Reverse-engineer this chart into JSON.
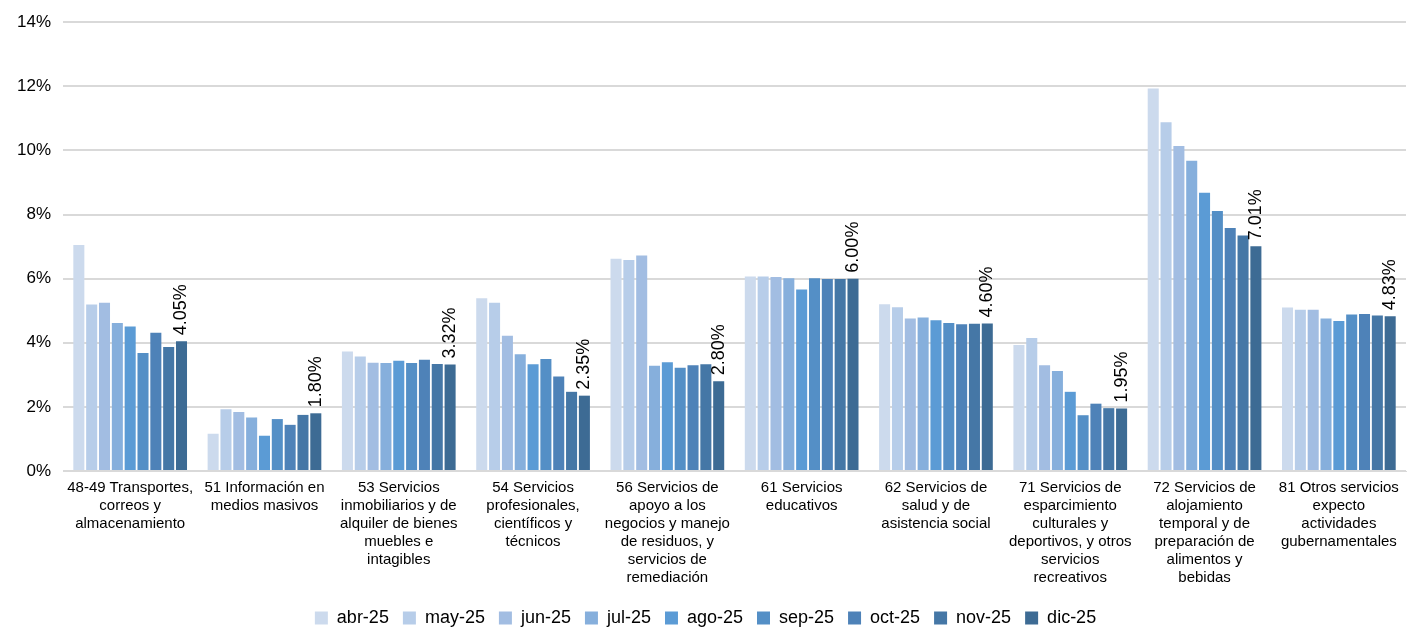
{
  "chart_data": {
    "type": "bar",
    "categories": [
      "48-49 Transportes, correos y almacenamiento",
      "51 Información en medios masivos",
      "53 Servicios inmobiliarios y de alquiler de bienes muebles e intagibles",
      "54 Servicios profesionales, científicos y técnicos",
      "56 Servicios de apoyo a los negocios y manejo de residuos, y servicios de remediación",
      "61 Servicios educativos",
      "62 Servicios de salud y de asistencia social",
      "71 Servicios de esparcimiento culturales y deportivos, y otros servicios recreativos",
      "72 Servicios de alojamiento temporal y de preparación de alimentos y bebidas",
      "81 Otros servicios expecto actividades gubernamentales"
    ],
    "series": [
      {
        "name": "abr-25",
        "color": "#ccdaed",
        "values": [
          7.05,
          1.16,
          3.73,
          5.39,
          6.62,
          6.07,
          5.2,
          3.93,
          11.93,
          5.1
        ]
      },
      {
        "name": "may-25",
        "color": "#b7cde9",
        "values": [
          5.19,
          1.93,
          3.57,
          5.25,
          6.58,
          6.07,
          5.11,
          4.15,
          10.88,
          5.03
        ]
      },
      {
        "name": "jun-25",
        "color": "#a2bde2",
        "values": [
          5.25,
          1.84,
          3.38,
          4.22,
          6.72,
          6.05,
          4.76,
          3.3,
          10.14,
          5.03
        ]
      },
      {
        "name": "jul-25",
        "color": "#86afdc",
        "values": [
          4.62,
          1.67,
          3.37,
          3.64,
          3.28,
          6.01,
          4.79,
          3.12,
          9.68,
          4.76
        ]
      },
      {
        "name": "ago-25",
        "color": "#5b9bd5",
        "values": [
          4.51,
          1.1,
          3.44,
          3.33,
          3.39,
          5.66,
          4.7,
          2.47,
          8.68,
          4.68
        ]
      },
      {
        "name": "sep-25",
        "color": "#548fc6",
        "values": [
          3.68,
          1.62,
          3.37,
          3.49,
          3.22,
          6.01,
          4.62,
          1.74,
          8.11,
          4.88
        ]
      },
      {
        "name": "oct-25",
        "color": "#4e82b8",
        "values": [
          4.31,
          1.44,
          3.47,
          2.95,
          3.3,
          5.99,
          4.58,
          2.1,
          7.58,
          4.9
        ]
      },
      {
        "name": "nov-25",
        "color": "#4577a6",
        "values": [
          3.87,
          1.75,
          3.34,
          2.47,
          3.33,
          5.99,
          4.59,
          1.96,
          7.35,
          4.85
        ]
      },
      {
        "name": "dic-25",
        "color": "#3d6b94",
        "values": [
          4.05,
          1.8,
          3.32,
          2.35,
          2.8,
          6.0,
          4.6,
          1.95,
          7.01,
          4.83
        ],
        "value_labels": [
          "4.05%",
          "1.80%",
          "3.32%",
          "2.35%",
          "2.80%",
          "6.00%",
          "4.60%",
          "1.95%",
          "7.01%",
          "4.83%"
        ]
      }
    ],
    "ylim": [
      0,
      14
    ],
    "yticks": [
      {
        "value": 0,
        "label": "0%"
      },
      {
        "value": 2,
        "label": "2%"
      },
      {
        "value": 4,
        "label": "4%"
      },
      {
        "value": 6,
        "label": "6%"
      },
      {
        "value": 8,
        "label": "8%"
      },
      {
        "value": 10,
        "label": "10%"
      },
      {
        "value": 12,
        "label": "12%"
      },
      {
        "value": 14,
        "label": "14%"
      }
    ],
    "grid": "y",
    "legend": "bottom"
  }
}
